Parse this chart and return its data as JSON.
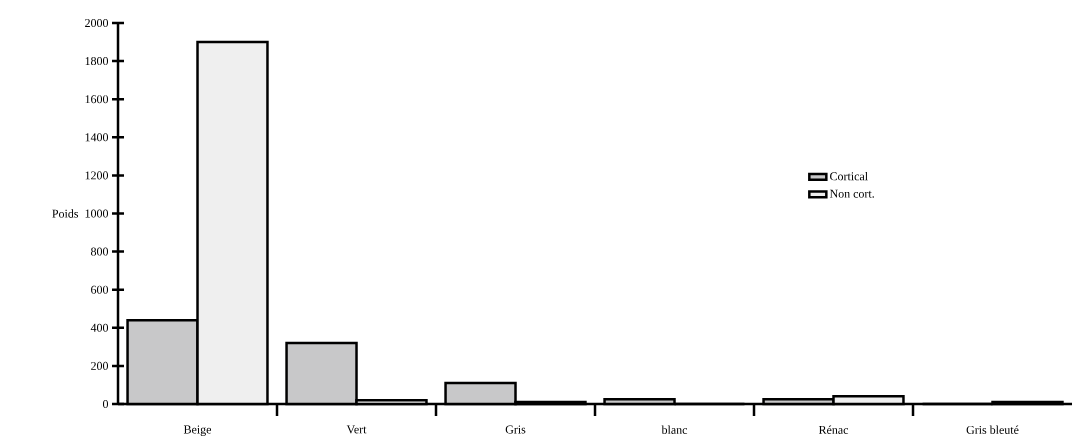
{
  "chart_data": {
    "type": "bar",
    "ylabel": "Poids",
    "categories": [
      "Beige",
      "Vert",
      "Gris",
      "blanc",
      "Rénac",
      "Gris bleuté"
    ],
    "series": [
      {
        "name": "Cortical",
        "color": "#c8c8c9",
        "values": [
          440,
          320,
          110,
          25,
          25,
          0
        ]
      },
      {
        "name": "Non cort.",
        "color": "#efefef",
        "values": [
          1900,
          20,
          10,
          0,
          40,
          10
        ]
      }
    ],
    "ylim": [
      0,
      2000
    ],
    "yticks": [
      0,
      200,
      400,
      600,
      800,
      1000,
      1200,
      1400,
      1600,
      1800,
      2000
    ],
    "grid": false,
    "legend": "right"
  }
}
